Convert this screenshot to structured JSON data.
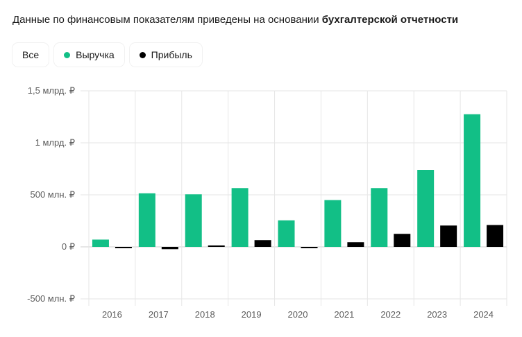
{
  "header": {
    "text_plain": "Данные по финансовым показателям приведены на основании ",
    "text_bold": "бухгалтерской отчетности"
  },
  "filters": [
    {
      "label": "Все",
      "color": null
    },
    {
      "label": "Выручка",
      "color": "#12bf86"
    },
    {
      "label": "Прибыль",
      "color": "#000000"
    }
  ],
  "chart_data": {
    "type": "bar",
    "categories": [
      "2016",
      "2017",
      "2018",
      "2019",
      "2020",
      "2021",
      "2022",
      "2023",
      "2024"
    ],
    "series": [
      {
        "name": "Выручка",
        "color": "#12bf86",
        "values": [
          70000000,
          515000000,
          505000000,
          565000000,
          255000000,
          450000000,
          565000000,
          740000000,
          1275000000
        ]
      },
      {
        "name": "Прибыль",
        "color": "#000000",
        "values": [
          -8000000,
          -22000000,
          12000000,
          65000000,
          -3000000,
          45000000,
          125000000,
          205000000,
          210000000
        ]
      }
    ],
    "ylim": [
      -500000000,
      1500000000
    ],
    "yticks": [
      {
        "value": 1500000000,
        "label": "1,5 млрд. ₽"
      },
      {
        "value": 1000000000,
        "label": "1 млрд. ₽"
      },
      {
        "value": 500000000,
        "label": "500 млн. ₽"
      },
      {
        "value": 0,
        "label": "0 ₽"
      },
      {
        "value": -500000000,
        "label": "-500 млн. ₽"
      }
    ],
    "grid": true,
    "legend": "top-left"
  }
}
